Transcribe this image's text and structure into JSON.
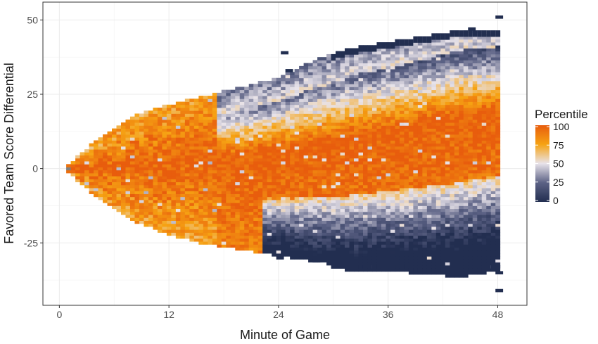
{
  "chart_data": {
    "type": "heatmap",
    "title": "",
    "xlabel": "Minute of Game",
    "ylabel": "Favored Team Score Differential",
    "xlim": [
      -1.8,
      51.2
    ],
    "ylim": [
      -46,
      56
    ],
    "x_ticks": [
      0,
      12,
      24,
      36,
      48
    ],
    "y_ticks": [
      -25,
      0,
      25,
      50
    ],
    "x_tick_labels": [
      "0",
      "12",
      "24",
      "36",
      "48"
    ],
    "y_tick_labels": [
      "-25",
      "0",
      "25",
      "50"
    ],
    "grid": true,
    "legend": {
      "title": "Percentile",
      "position": "right",
      "breaks": [
        0,
        25,
        50,
        75,
        100
      ],
      "labels": [
        "0",
        "25",
        "50",
        "75",
        "100"
      ]
    },
    "color_scale": {
      "low": "#222e50",
      "mid_low": "#5c6285",
      "mid": "#e8e3ea",
      "mid_high": "#f6a313",
      "high": "#e85d0d",
      "na": "#7f7f7f"
    },
    "cell_width_minutes": 0.5,
    "cell_height_points": 1,
    "envelope_minute": [
      1,
      4,
      8,
      12,
      16,
      20,
      24,
      28,
      32,
      36,
      40,
      44,
      48
    ],
    "envelope_upper": [
      1,
      9,
      17,
      21,
      24,
      27,
      30,
      36,
      40,
      42,
      44,
      46,
      46
    ],
    "envelope_lower": [
      -1,
      -9,
      -17,
      -22,
      -25,
      -27,
      -29,
      -31,
      -33,
      -33,
      -34,
      -35,
      -33
    ],
    "mean_shift_upper_fraction": 0.42,
    "outliers": [
      {
        "minute": 48,
        "differential": 51
      },
      {
        "minute": 48,
        "differential": -41
      },
      {
        "minute": 45,
        "differential": 47
      },
      {
        "minute": 24.5,
        "differential": 39
      },
      {
        "minute": 25,
        "differential": 33
      },
      {
        "minute": 24,
        "differential": -30
      },
      {
        "minute": 28,
        "differential": -31
      },
      {
        "minute": 33.5,
        "differential": -33
      },
      {
        "minute": 35.5,
        "differential": -34
      },
      {
        "minute": 37,
        "differential": -33
      },
      {
        "minute": 48,
        "differential": -35
      }
    ]
  }
}
